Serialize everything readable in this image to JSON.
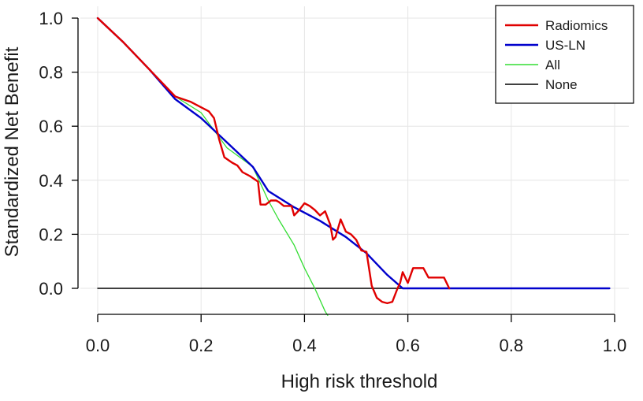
{
  "chart_data": {
    "type": "line",
    "title": "",
    "xlabel": "High risk threshold",
    "ylabel": "Standardized Net Benefit",
    "xlim": [
      0,
      1
    ],
    "ylim": [
      -0.1,
      1.0
    ],
    "grid": true,
    "legend_position": "top-right",
    "x_ticks": [
      "0.0",
      "0.2",
      "0.4",
      "0.6",
      "0.8",
      "1.0"
    ],
    "y_ticks": [
      "0.0",
      "0.2",
      "0.4",
      "0.6",
      "0.8",
      "1.0"
    ],
    "series": [
      {
        "name": "Radiomics",
        "color": "#e00000",
        "x": [
          0.0,
          0.05,
          0.1,
          0.15,
          0.18,
          0.2,
          0.215,
          0.225,
          0.235,
          0.245,
          0.26,
          0.27,
          0.28,
          0.295,
          0.31,
          0.315,
          0.325,
          0.335,
          0.345,
          0.35,
          0.36,
          0.37,
          0.375,
          0.38,
          0.39,
          0.4,
          0.41,
          0.42,
          0.43,
          0.44,
          0.45,
          0.455,
          0.46,
          0.47,
          0.48,
          0.49,
          0.5,
          0.51,
          0.52,
          0.53,
          0.54,
          0.55,
          0.56,
          0.57,
          0.58,
          0.585,
          0.59,
          0.6,
          0.61,
          0.62,
          0.63,
          0.64,
          0.65,
          0.66,
          0.67,
          0.68
        ],
        "y": [
          1.0,
          0.91,
          0.81,
          0.71,
          0.69,
          0.67,
          0.655,
          0.63,
          0.55,
          0.485,
          0.465,
          0.455,
          0.43,
          0.415,
          0.395,
          0.31,
          0.31,
          0.325,
          0.325,
          0.32,
          0.305,
          0.305,
          0.305,
          0.27,
          0.29,
          0.315,
          0.305,
          0.29,
          0.27,
          0.285,
          0.235,
          0.18,
          0.19,
          0.255,
          0.21,
          0.2,
          0.18,
          0.14,
          0.135,
          0.01,
          -0.035,
          -0.05,
          -0.055,
          -0.05,
          0.0,
          0.02,
          0.06,
          0.02,
          0.075,
          0.075,
          0.075,
          0.04,
          0.04,
          0.04,
          0.04,
          0.0
        ]
      },
      {
        "name": "US-LN",
        "color": "#0000cc",
        "x": [
          0.0,
          0.05,
          0.1,
          0.15,
          0.2,
          0.25,
          0.3,
          0.33,
          0.38,
          0.43,
          0.48,
          0.52,
          0.56,
          0.59,
          0.6,
          0.7,
          0.8,
          0.9,
          0.99
        ],
        "y": [
          1.0,
          0.91,
          0.81,
          0.7,
          0.63,
          0.54,
          0.45,
          0.36,
          0.3,
          0.25,
          0.19,
          0.13,
          0.05,
          0.0,
          0.0,
          0.0,
          0.0,
          0.0,
          0.0
        ]
      },
      {
        "name": "All",
        "color": "#33dd33",
        "x": [
          0.0,
          0.05,
          0.1,
          0.15,
          0.2,
          0.25,
          0.3,
          0.33,
          0.35,
          0.38,
          0.4,
          0.42,
          0.44,
          0.445
        ],
        "y": [
          1.0,
          0.91,
          0.81,
          0.71,
          0.65,
          0.52,
          0.45,
          0.325,
          0.255,
          0.16,
          0.075,
          0.0,
          -0.085,
          -0.1
        ]
      },
      {
        "name": "None",
        "color": "#000000",
        "x": [
          0.0,
          0.99
        ],
        "y": [
          0.0,
          0.0
        ]
      }
    ]
  }
}
